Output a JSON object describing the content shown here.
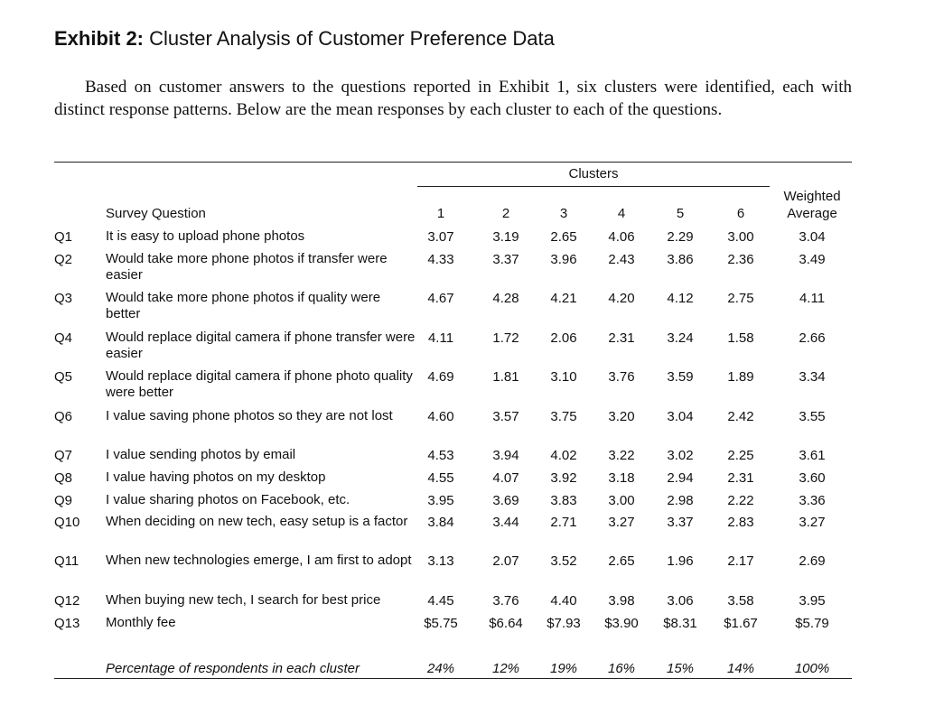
{
  "exhibit": {
    "label": "Exhibit 2:",
    "title": "Cluster Analysis of Customer Preference Data",
    "intro": "Based on customer answers to the questions reported in Exhibit 1, six clusters were identified, each with distinct response patterns. Below are the mean responses by each cluster to each of the questions."
  },
  "table": {
    "group_header": "Clusters",
    "question_header": "Survey Question",
    "weighted_header_line1": "Weighted",
    "weighted_header_line2": "Average",
    "cluster_ids": [
      "1",
      "2",
      "3",
      "4",
      "5",
      "6"
    ],
    "rows": [
      {
        "id": "Q1",
        "text": "It is easy to upload phone photos",
        "values": [
          "3.07",
          "3.19",
          "2.65",
          "4.06",
          "2.29",
          "3.00"
        ],
        "avg": "3.04"
      },
      {
        "id": "Q2",
        "text": "Would take more phone photos if transfer were easier",
        "values": [
          "4.33",
          "3.37",
          "3.96",
          "2.43",
          "3.86",
          "2.36"
        ],
        "avg": "3.49"
      },
      {
        "id": "Q3",
        "text": "Would take more phone photos if quality were better",
        "values": [
          "4.67",
          "4.28",
          "4.21",
          "4.20",
          "4.12",
          "2.75"
        ],
        "avg": "4.11"
      },
      {
        "id": "Q4",
        "text": "Would replace digital camera if phone transfer were easier",
        "values": [
          "4.11",
          "1.72",
          "2.06",
          "2.31",
          "3.24",
          "1.58"
        ],
        "avg": "2.66"
      },
      {
        "id": "Q5",
        "text": "Would replace digital camera if phone photo quality were better",
        "values": [
          "4.69",
          "1.81",
          "3.10",
          "3.76",
          "3.59",
          "1.89"
        ],
        "avg": "3.34"
      },
      {
        "id": "Q6",
        "text": "I value saving phone photos so they are not lost",
        "values": [
          "4.60",
          "3.57",
          "3.75",
          "3.20",
          "3.04",
          "2.42"
        ],
        "avg": "3.55"
      },
      {
        "id": "Q7",
        "text": "I value sending photos by email",
        "values": [
          "4.53",
          "3.94",
          "4.02",
          "3.22",
          "3.02",
          "2.25"
        ],
        "avg": "3.61"
      },
      {
        "id": "Q8",
        "text": "I value having photos on my desktop",
        "values": [
          "4.55",
          "4.07",
          "3.92",
          "3.18",
          "2.94",
          "2.31"
        ],
        "avg": "3.60"
      },
      {
        "id": "Q9",
        "text": "I value sharing photos on Facebook, etc.",
        "values": [
          "3.95",
          "3.69",
          "3.83",
          "3.00",
          "2.98",
          "2.22"
        ],
        "avg": "3.36"
      },
      {
        "id": "Q10",
        "text": "When deciding on new tech, easy setup is a factor",
        "values": [
          "3.84",
          "3.44",
          "2.71",
          "3.27",
          "3.37",
          "2.83"
        ],
        "avg": "3.27"
      },
      {
        "id": "Q11",
        "text": "When new technologies emerge, I am first to adopt",
        "values": [
          "3.13",
          "2.07",
          "3.52",
          "2.65",
          "1.96",
          "2.17"
        ],
        "avg": "2.69"
      },
      {
        "id": "Q12",
        "text": "When buying new tech, I search for best price",
        "values": [
          "4.45",
          "3.76",
          "4.40",
          "3.98",
          "3.06",
          "3.58"
        ],
        "avg": "3.95"
      },
      {
        "id": "Q13",
        "text": "Monthly fee",
        "values": [
          "$5.75",
          "$6.64",
          "$7.93",
          "$3.90",
          "$8.31",
          "$1.67"
        ],
        "avg": "$5.79"
      }
    ],
    "footer": {
      "label": "Percentage of respondents in each cluster",
      "values": [
        "24%",
        "12%",
        "19%",
        "16%",
        "15%",
        "14%"
      ],
      "avg": "100%"
    }
  }
}
